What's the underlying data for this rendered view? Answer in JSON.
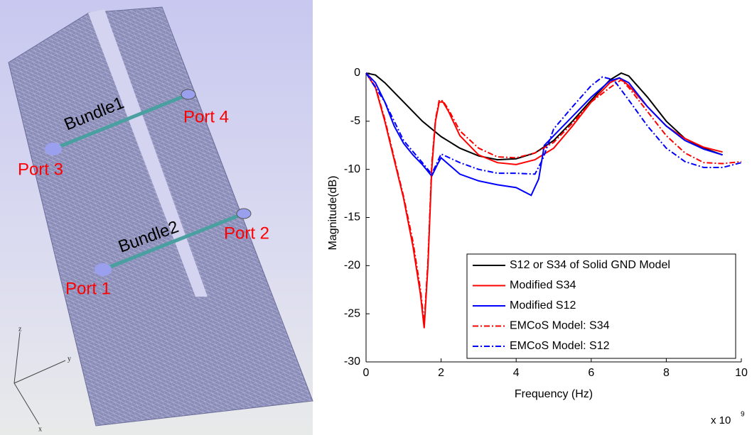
{
  "model_view": {
    "labels": {
      "bundle1": "Bundle1",
      "port4": "Port 4",
      "port3": "Port 3",
      "bundle2": "Bundle2",
      "port2": "Port 2",
      "port1": "Port 1"
    },
    "axes": {
      "z": "z",
      "y": "y",
      "x": "x"
    }
  },
  "chart_data": {
    "type": "line",
    "x_label": "Frequency (Hz)",
    "y_label": "Magnitude(dB)",
    "x_multiplier": "x 10",
    "x_multiplier_exponent": "9",
    "xlim": [
      0,
      10
    ],
    "xticks": [
      0,
      2,
      4,
      6,
      8,
      10
    ],
    "ylim": [
      -30,
      0
    ],
    "yticks": [
      -30,
      -25,
      -20,
      -15,
      -10,
      -5,
      0
    ],
    "legend": "lower-right",
    "series": [
      {
        "name": "S12 or S34 of Solid GND Model",
        "color": "#000000",
        "dash": "solid",
        "x": [
          0,
          0.25,
          0.5,
          1,
          1.5,
          2,
          2.5,
          3,
          3.5,
          4,
          4.5,
          5,
          5.5,
          6,
          6.5,
          6.8,
          7,
          7.5,
          8,
          8.5,
          9,
          9.5
        ],
        "values": [
          0,
          -0.2,
          -1,
          -3,
          -5,
          -6.6,
          -7.8,
          -8.6,
          -9,
          -8.9,
          -8.3,
          -7,
          -5,
          -2.8,
          -0.7,
          0,
          -0.3,
          -2.5,
          -5,
          -6.8,
          -7.8,
          -8.5
        ]
      },
      {
        "name": "Modified S34",
        "color": "#ff0000",
        "dash": "solid",
        "x": [
          0,
          0.25,
          0.5,
          0.75,
          1,
          1.25,
          1.45,
          1.55,
          1.65,
          1.75,
          1.85,
          1.95,
          2.05,
          2.2,
          2.5,
          3,
          3.5,
          4,
          4.5,
          5,
          5.5,
          6,
          6.5,
          6.75,
          7,
          7.5,
          8,
          8.5,
          9,
          9.5
        ],
        "values": [
          0,
          -1.5,
          -5,
          -9,
          -13,
          -18,
          -23,
          -26.5,
          -20,
          -10,
          -5,
          -3,
          -3,
          -4,
          -6.5,
          -8.5,
          -9.3,
          -9.5,
          -9,
          -7.8,
          -5.5,
          -3,
          -1,
          -0.5,
          -1.3,
          -3.5,
          -5.5,
          -6.8,
          -7.7,
          -8.2
        ]
      },
      {
        "name": "Modified S12",
        "color": "#0000ff",
        "dash": "solid",
        "x": [
          0,
          0.25,
          0.5,
          0.75,
          1,
          1.25,
          1.5,
          1.75,
          1.9,
          2,
          2.5,
          3,
          3.5,
          4,
          4.4,
          4.6,
          4.75,
          5,
          5.5,
          6,
          6.5,
          6.75,
          7,
          7.5,
          8,
          8.5,
          9,
          9.5
        ],
        "values": [
          0,
          -1,
          -3,
          -5.5,
          -7.3,
          -8.5,
          -9.5,
          -10.7,
          -9.5,
          -8.8,
          -10.5,
          -11.2,
          -11.6,
          -11.9,
          -12.7,
          -11,
          -7.5,
          -6.5,
          -4.5,
          -2.5,
          -0.8,
          -0.5,
          -1,
          -3.5,
          -5.5,
          -7,
          -7.9,
          -8.5
        ]
      },
      {
        "name": "EMCoS Model: S34",
        "color": "#ff0000",
        "dash": "dashdot",
        "x": [
          0,
          0.25,
          0.5,
          0.75,
          1,
          1.25,
          1.45,
          1.55,
          1.65,
          1.75,
          1.85,
          1.95,
          2.05,
          2.2,
          2.5,
          3,
          3.5,
          4,
          4.5,
          5,
          5.5,
          6,
          6.5,
          6.8,
          7,
          7.5,
          8,
          8.5,
          9,
          9.5,
          10
        ],
        "values": [
          0,
          -1.4,
          -4.8,
          -8.8,
          -12.8,
          -17.5,
          -22.5,
          -26,
          -19.5,
          -9.5,
          -4.8,
          -2.8,
          -2.9,
          -3.8,
          -6,
          -7.8,
          -8.7,
          -8.8,
          -8.3,
          -7.2,
          -5.2,
          -3,
          -1.5,
          -0.7,
          -1.5,
          -4,
          -6.5,
          -8.3,
          -9.3,
          -9.4,
          -9.2
        ]
      },
      {
        "name": "EMCoS Model: S12",
        "color": "#0000ff",
        "dash": "dashdot",
        "x": [
          0,
          0.5,
          1,
          1.5,
          1.75,
          2,
          2.5,
          3,
          3.5,
          4,
          4.5,
          4.7,
          5,
          5.5,
          6,
          6.3,
          6.6,
          7,
          7.5,
          8,
          8.5,
          9,
          9.5,
          10
        ],
        "values": [
          0,
          -3,
          -7,
          -9.3,
          -10.5,
          -8.4,
          -9.3,
          -10,
          -10.4,
          -10.4,
          -10.5,
          -9,
          -5.8,
          -3.5,
          -1.3,
          -0.4,
          -0.7,
          -2.8,
          -5.5,
          -7.8,
          -9.2,
          -9.8,
          -9.8,
          -9.3
        ]
      }
    ]
  }
}
